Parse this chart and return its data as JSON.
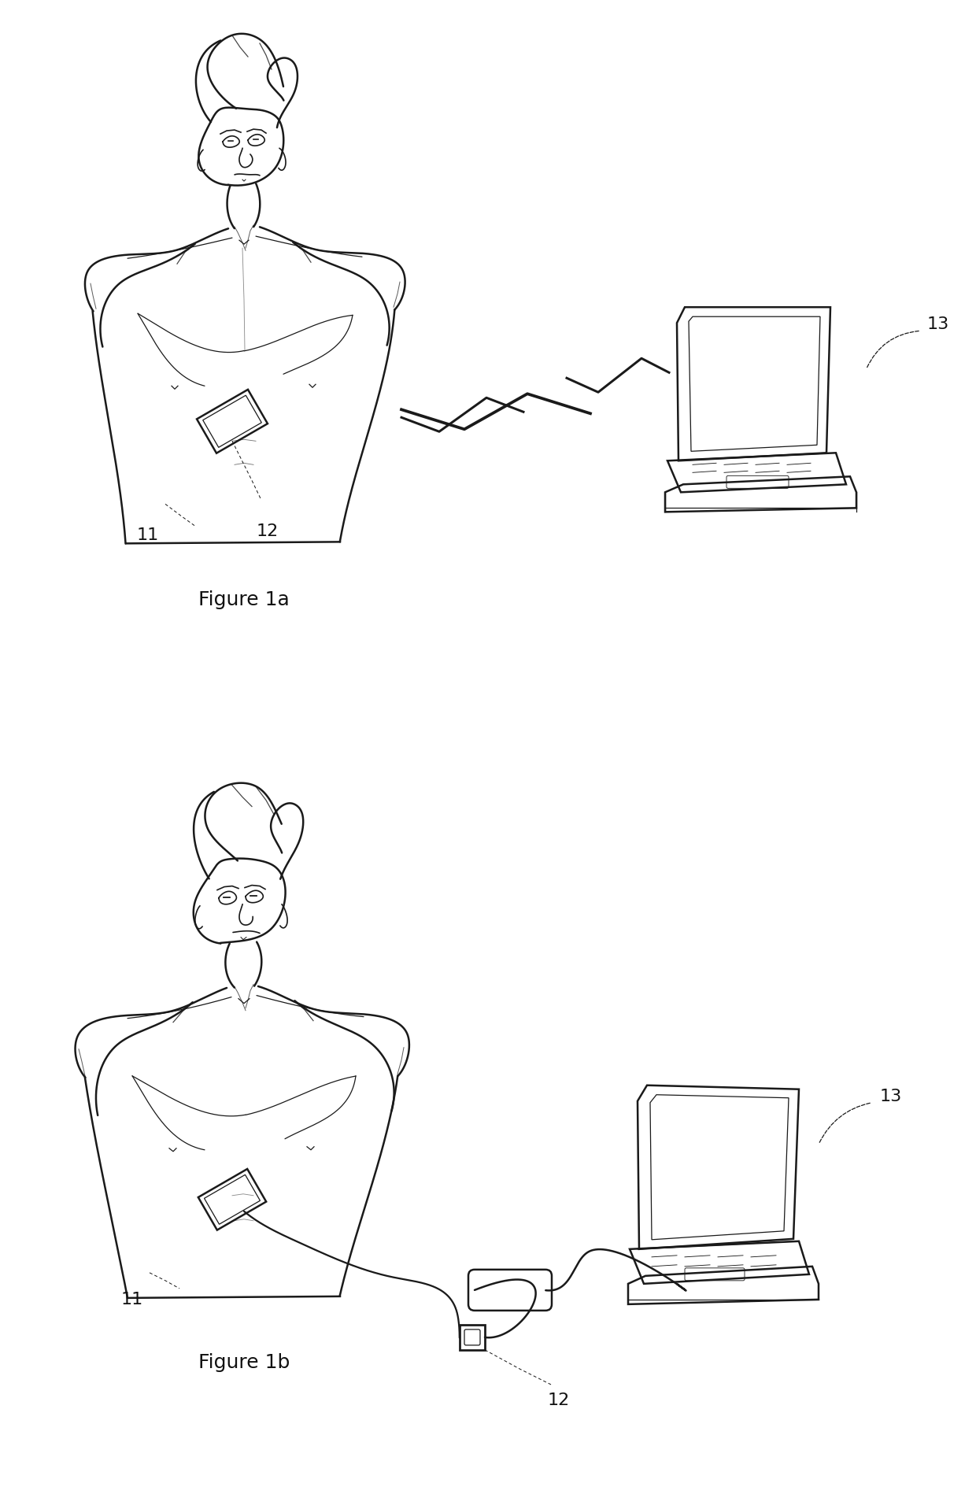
{
  "background_color": "#ffffff",
  "line_color": "#1a1a1a",
  "figure_width": 12.4,
  "figure_height": 19.17,
  "fig1a_caption": "Figure 1a",
  "fig1b_caption": "Figure 1b",
  "label_11_fig1a": "11",
  "label_12_fig1a": "12",
  "label_13_fig1a": "13",
  "label_11_fig1b": "11",
  "label_12_fig1b": "12",
  "label_13_fig1b": "13",
  "caption_fontsize": 18,
  "label_fontsize": 16
}
